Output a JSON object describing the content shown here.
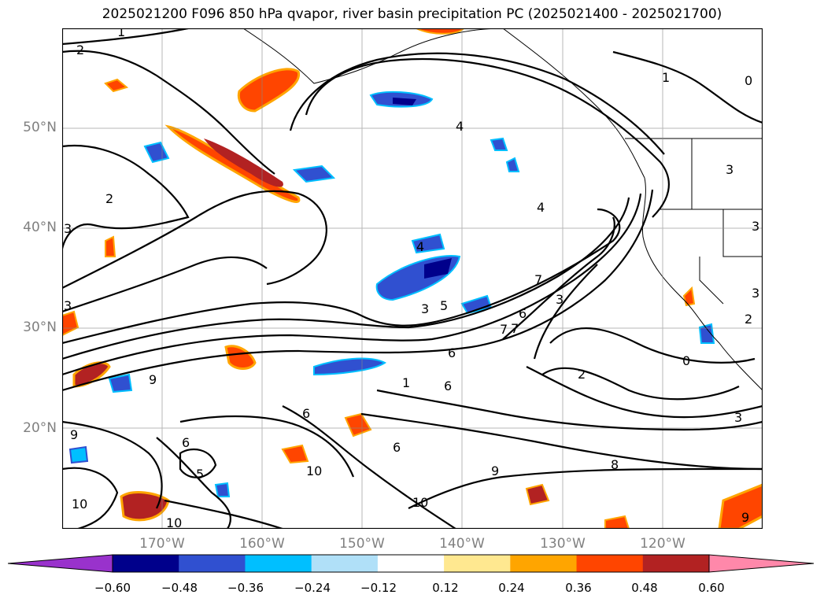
{
  "title": "2025021200 F096 850 hPa qvapor, river basin precipitation PC (2025021400 - 2025021700)",
  "lat_labels": [
    "50°N",
    "40°N",
    "30°N",
    "20°N"
  ],
  "lon_labels": [
    "170°W",
    "160°W",
    "150°W",
    "140°W",
    "130°W",
    "120°W"
  ],
  "colorbar": {
    "ticks": [
      "−0.60",
      "−0.48",
      "−0.36",
      "−0.24",
      "−0.12",
      "0.12",
      "0.24",
      "0.36",
      "0.48",
      "0.60"
    ],
    "colors": [
      "#9932cc",
      "#00008b",
      "#3050d0",
      "#00bfff",
      "#b0e0f8",
      "#ffffff",
      "#ffe890",
      "#ffa500",
      "#ff4500",
      "#b22222",
      "#ff88aa"
    ],
    "extend": "both"
  },
  "contour_labels": [
    "1",
    "2",
    "2",
    "3",
    "4",
    "4",
    "4",
    "5",
    "3",
    "7",
    "6",
    "7",
    "3",
    "6",
    "2",
    "0",
    "3",
    "1",
    "0",
    "3",
    "3",
    "9",
    "9",
    "6",
    "6",
    "5",
    "10",
    "10",
    "10",
    "9",
    "8",
    "3",
    "7",
    "6",
    "6",
    "10",
    "9",
    "1",
    "3",
    "2"
  ],
  "map": {
    "lat_range": [
      10,
      60
    ],
    "lon_range": [
      -180,
      -110
    ],
    "gridlines": true,
    "fill_variable": "river basin precipitation PC",
    "contour_variable": "850 hPa qvapor"
  }
}
